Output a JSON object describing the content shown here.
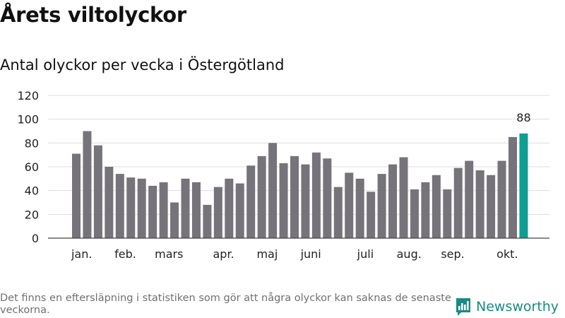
{
  "title": "Årets viltolyckor",
  "subtitle": "Antal olyckor per vecka i Östergötland",
  "footnote": "Det finns en eftersläpning i statistiken som gör att några olyckor kan saknas de senaste veckorna.",
  "logo_text": "Newsworthy",
  "colors": {
    "bar": "#76747a",
    "highlight": "#0e9e94",
    "grid": "#dddddd",
    "axis": "#444444",
    "brand": "#1a8a84"
  },
  "chart_data": {
    "type": "bar",
    "title": "Antal olyckor per vecka i Östergötland",
    "xlabel": "",
    "ylabel": "",
    "ylim": [
      0,
      120
    ],
    "yticks": [
      0,
      20,
      40,
      60,
      80,
      100,
      120
    ],
    "grid": true,
    "weeks": [
      1,
      2,
      3,
      4,
      5,
      6,
      7,
      8,
      9,
      10,
      11,
      12,
      13,
      14,
      15,
      16,
      17,
      18,
      19,
      20,
      21,
      22,
      23,
      24,
      25,
      26,
      27,
      28,
      29,
      30,
      31,
      32,
      33,
      34,
      35,
      36,
      37,
      38,
      39,
      40,
      41,
      42
    ],
    "values": [
      71,
      90,
      78,
      60,
      54,
      51,
      50,
      44,
      47,
      30,
      50,
      47,
      28,
      43,
      50,
      46,
      61,
      69,
      80,
      63,
      69,
      62,
      72,
      67,
      43,
      55,
      50,
      39,
      54,
      62,
      68,
      41,
      47,
      53,
      41,
      59,
      65,
      57,
      53,
      65,
      85,
      88
    ],
    "highlight_index": 41,
    "highlight_label": "88",
    "month_labels": [
      {
        "label": "jan.",
        "week": 1.5
      },
      {
        "label": "feb.",
        "week": 5.5
      },
      {
        "label": "mars",
        "week": 9.5
      },
      {
        "label": "apr.",
        "week": 14.5
      },
      {
        "label": "maj",
        "week": 18.5
      },
      {
        "label": "juni",
        "week": 22.5
      },
      {
        "label": "juli",
        "week": 27.5
      },
      {
        "label": "aug.",
        "week": 31.5
      },
      {
        "label": "sep.",
        "week": 35.5
      },
      {
        "label": "okt.",
        "week": 40.5
      }
    ]
  }
}
